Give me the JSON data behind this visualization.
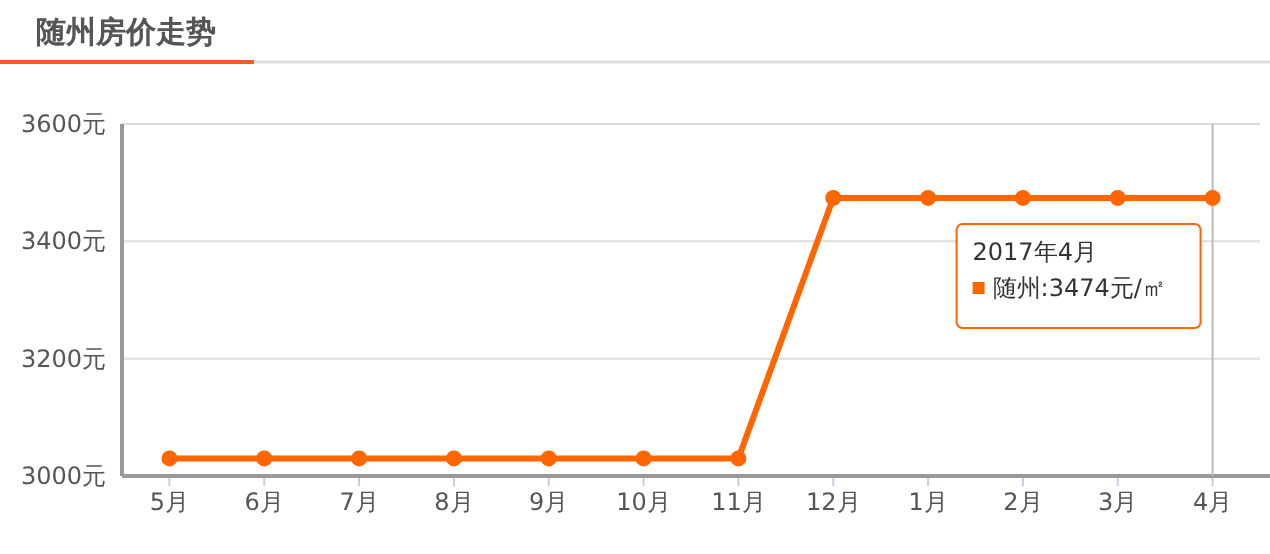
{
  "chart_data": {
    "type": "line",
    "title": "随州房价走势",
    "categories": [
      "5月",
      "6月",
      "7月",
      "8月",
      "9月",
      "10月",
      "11月",
      "12月",
      "1月",
      "2月",
      "3月",
      "4月"
    ],
    "series": [
      {
        "color": "#ff6600",
        "values": [
          3030,
          3030,
          3030,
          3030,
          3030,
          3030,
          3030,
          3474,
          3474,
          3474,
          3474,
          3474
        ]
      }
    ],
    "ylim": [
      3000,
      3600
    ],
    "yticks": [
      {
        "value": 3000,
        "label": "3000元"
      },
      {
        "value": 3200,
        "label": "3200元"
      },
      {
        "value": 3400,
        "label": "3400元"
      },
      {
        "value": 3600,
        "label": "3600元"
      }
    ],
    "grid": "y",
    "marker": "circle",
    "line_style": "solid",
    "ref_lines": [
      {
        "axis": "x",
        "value": "4月",
        "color": "#bbbbbb"
      }
    ],
    "annotations": [
      "2017年4月",
      "随州:3474元/㎡"
    ]
  }
}
